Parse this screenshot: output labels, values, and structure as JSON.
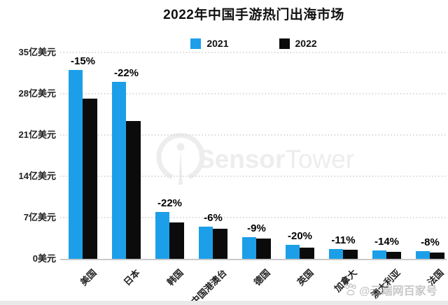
{
  "chart_data": {
    "type": "bar",
    "title": "2022年中国手游热门出海市场",
    "categories": [
      "美国",
      "日本",
      "韩国",
      "中国港澳台",
      "德国",
      "英国",
      "加拿大",
      "澳大利亚",
      "法国"
    ],
    "series": [
      {
        "name": "2021",
        "color": "#1C9FE8",
        "values": [
          32.0,
          30.0,
          8.0,
          5.4,
          3.7,
          2.4,
          1.7,
          1.4,
          1.3
        ]
      },
      {
        "name": "2022",
        "color": "#0b0b0b",
        "values": [
          27.2,
          23.4,
          6.2,
          5.1,
          3.4,
          1.9,
          1.5,
          1.2,
          1.1
        ]
      }
    ],
    "pct_change_labels": [
      "-15%",
      "-22%",
      "-22%",
      "-6%",
      "-9%",
      "-20%",
      "-11%",
      "-14%",
      "-8%"
    ],
    "y_axis": {
      "unit": "亿美元",
      "max": 35,
      "tick_values": [
        35,
        28,
        21,
        14,
        7,
        0
      ],
      "tick_labels": [
        "35亿美元",
        "28亿美元",
        "21亿美元",
        "14亿美元",
        "7亿美元",
        "0美元"
      ]
    },
    "legend_position": "top",
    "grid": "dotted-horizontal",
    "ylim": [
      0,
      35
    ]
  },
  "watermark_center": {
    "brand_bold": "Sensor",
    "brand_light": "Tower",
    "color": "#ededed"
  },
  "watermark_corner": {
    "icon": "baidu-paw-icon",
    "text": "@云端网百家号"
  }
}
